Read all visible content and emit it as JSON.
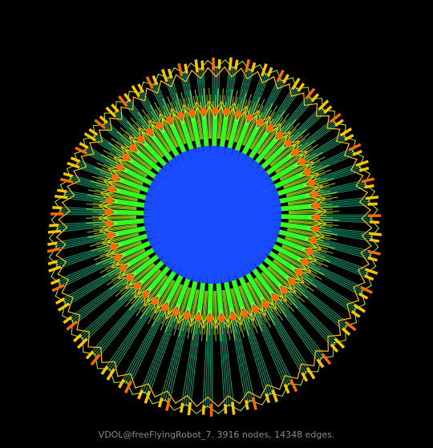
{
  "graph": {
    "caption": "VDOL@freeFlyingRobot_7. 3916 nodes, 14348 edges.",
    "palette": {
      "core": "#1a4cff",
      "inner": "#33ff22",
      "mid": "#b8f020",
      "teal": "#19d69a",
      "node": "#ff6a00",
      "outer": "#ffc400",
      "background": "#000000"
    }
  }
}
